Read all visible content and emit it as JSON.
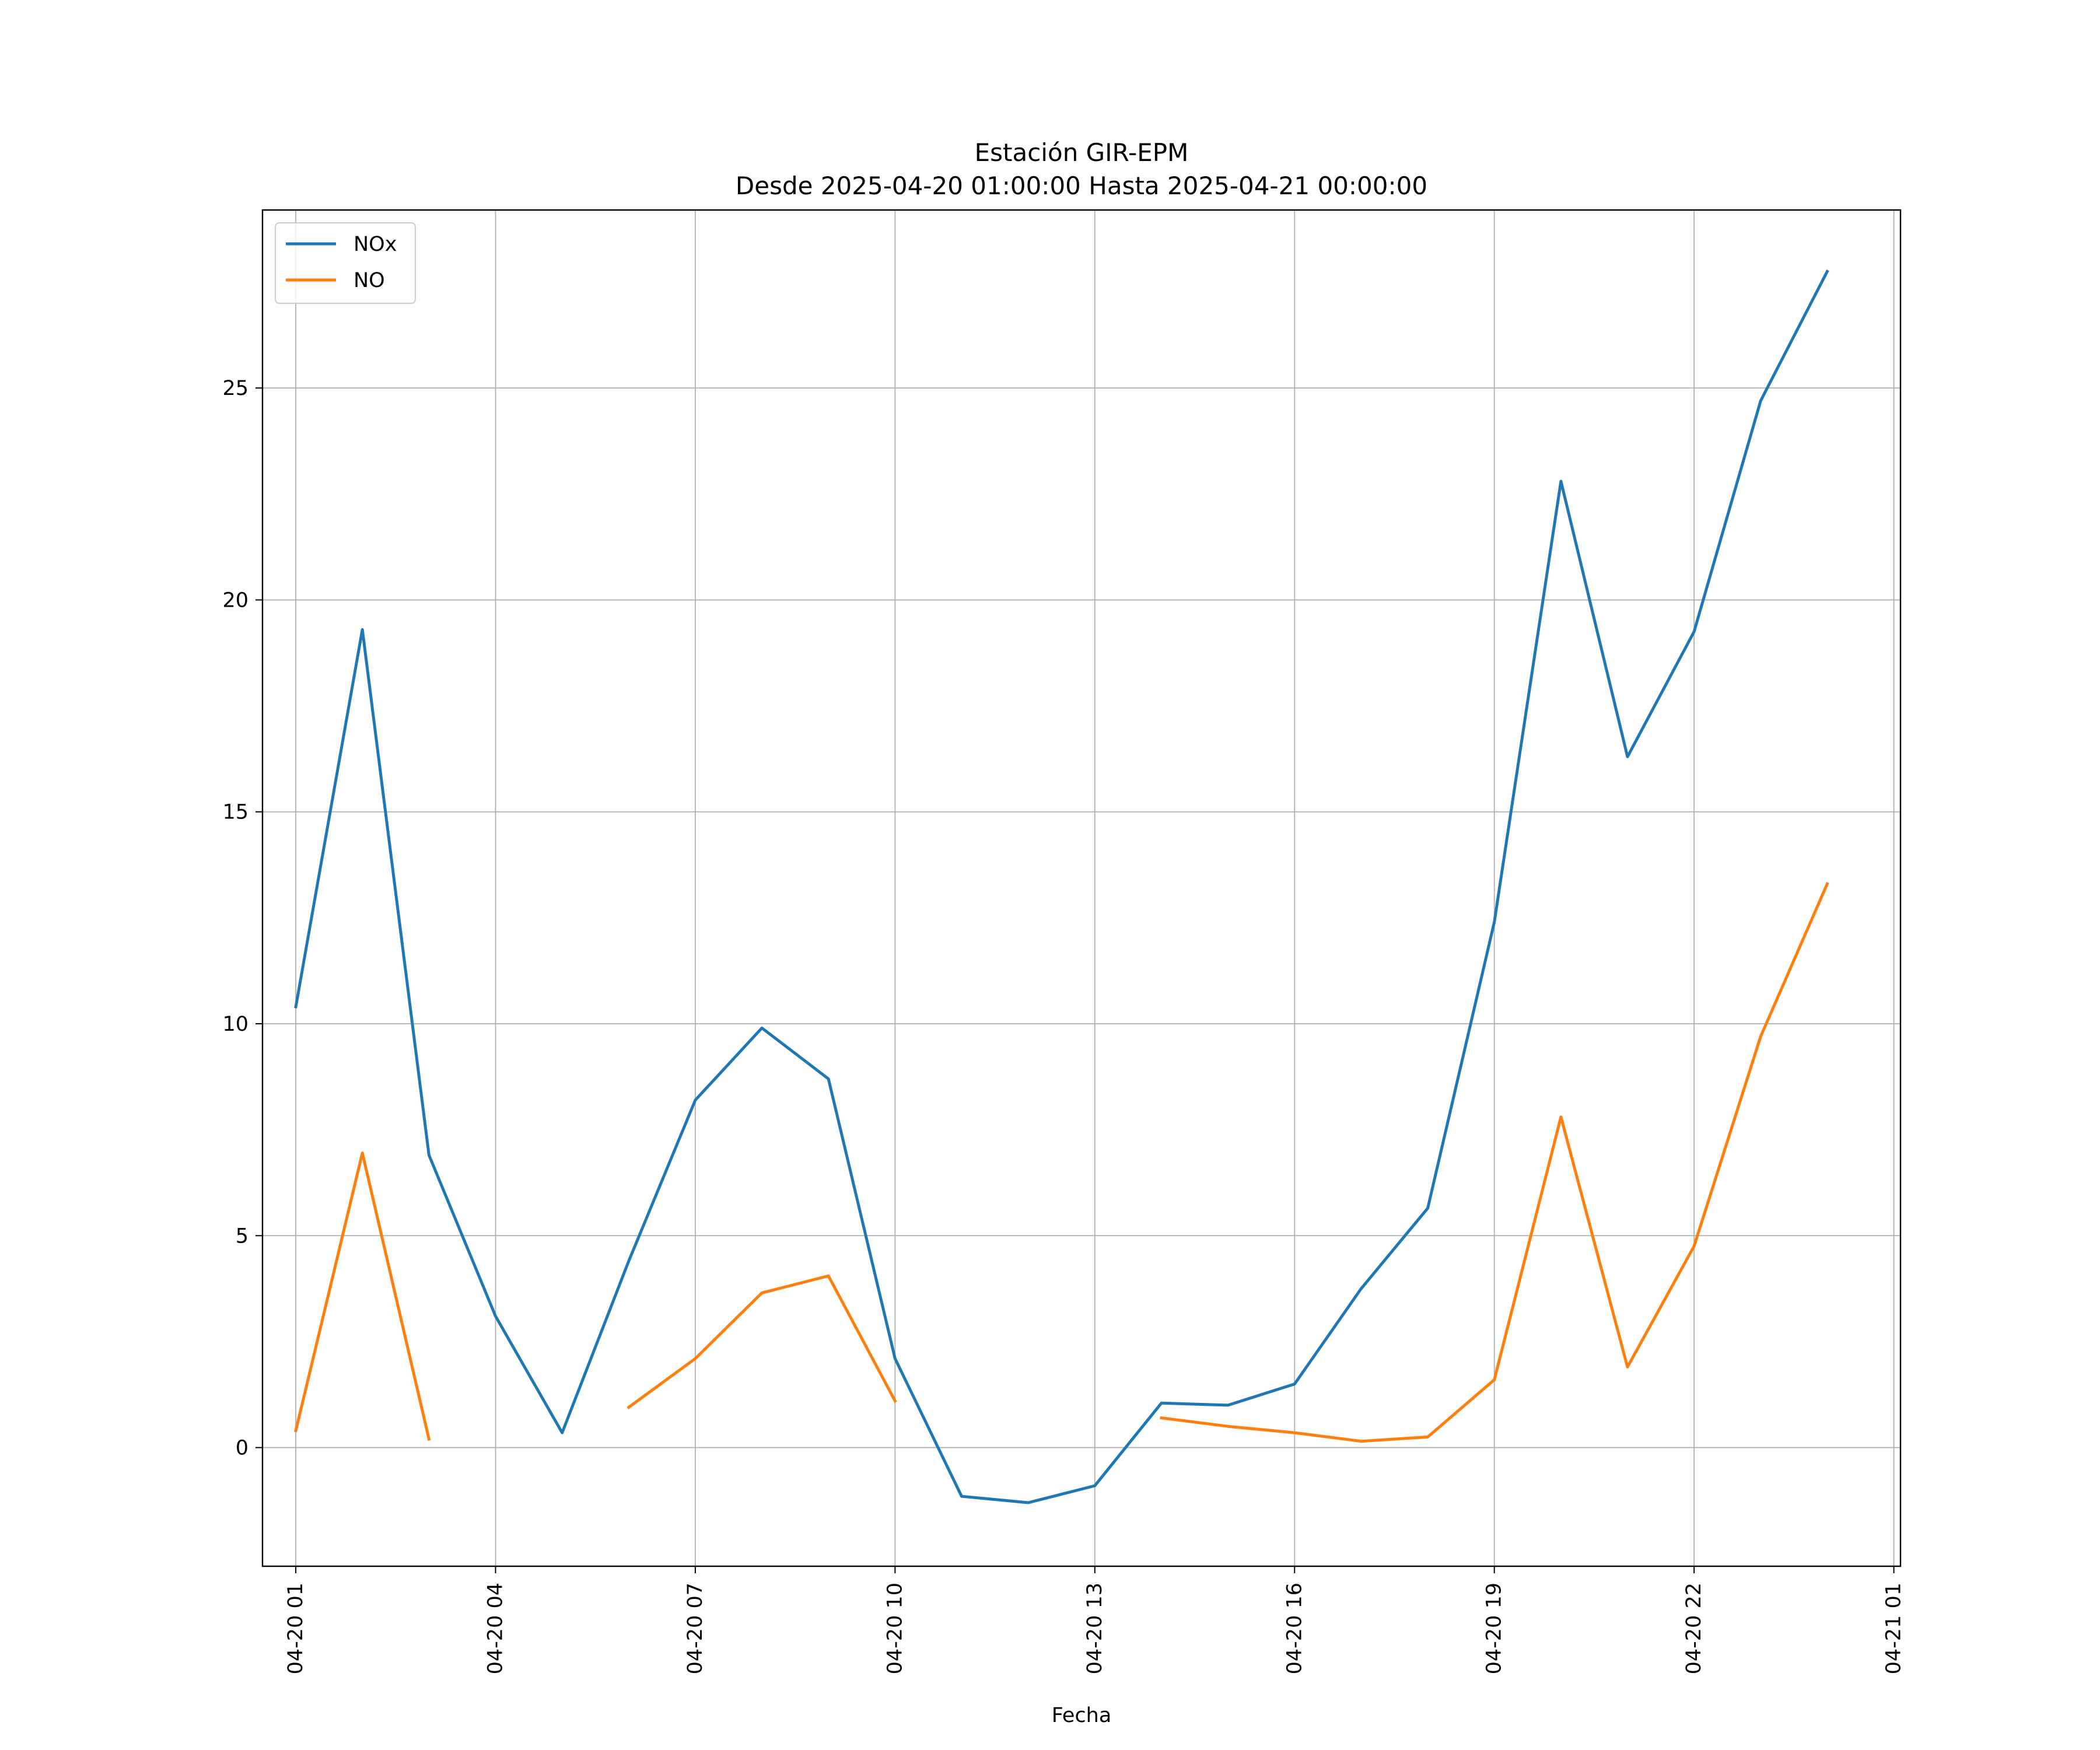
{
  "chart_data": {
    "type": "line",
    "title": "Estación GIR-EPM",
    "subtitle": "Desde 2025-04-20 01:00:00 Hasta 2025-04-21 00:00:00",
    "xlabel": "Fecha",
    "ylabel": "",
    "x": [
      "04-20 01",
      "04-20 02",
      "04-20 03",
      "04-20 04",
      "04-20 05",
      "04-20 06",
      "04-20 07",
      "04-20 08",
      "04-20 09",
      "04-20 10",
      "04-20 11",
      "04-20 12",
      "04-20 13",
      "04-20 14",
      "04-20 15",
      "04-20 16",
      "04-20 17",
      "04-20 18",
      "04-20 19",
      "04-20 20",
      "04-20 21",
      "04-20 22",
      "04-20 23",
      "04-21 00"
    ],
    "x_ticks": [
      "04-20 01",
      "04-20 04",
      "04-20 07",
      "04-20 10",
      "04-20 13",
      "04-20 16",
      "04-20 19",
      "04-20 22",
      "04-21 01"
    ],
    "y_ticks": [
      0,
      5,
      10,
      15,
      20,
      25
    ],
    "xlim_hours": [
      -0.5,
      24.1
    ],
    "ylim": [
      -2.8,
      29.2
    ],
    "grid": true,
    "legend_position": "top-left",
    "series": [
      {
        "name": "NOx",
        "color": "#1f77b4",
        "values": [
          10.4,
          19.3,
          6.9,
          3.1,
          0.35,
          4.4,
          8.2,
          9.9,
          8.7,
          2.1,
          -1.15,
          -1.3,
          -0.9,
          1.05,
          1.0,
          1.5,
          3.75,
          5.65,
          12.4,
          22.8,
          16.3,
          19.25,
          24.7,
          27.75
        ]
      },
      {
        "name": "NO",
        "color": "#ff7f0e",
        "values": [
          0.4,
          6.95,
          0.2,
          null,
          null,
          0.95,
          2.1,
          3.65,
          4.05,
          1.1,
          null,
          null,
          null,
          0.7,
          0.5,
          0.35,
          0.15,
          0.25,
          1.6,
          7.8,
          1.9,
          4.75,
          9.7,
          13.3
        ]
      }
    ]
  }
}
